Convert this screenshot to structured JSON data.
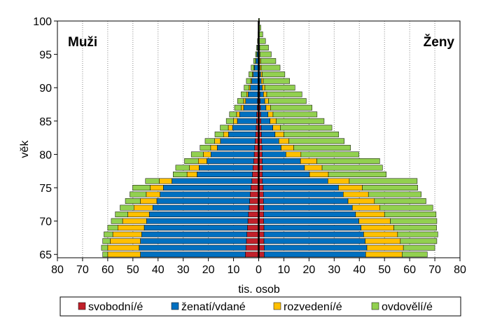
{
  "chart_data": {
    "type": "bar",
    "orientation": "horizontal",
    "title": "",
    "xlabel": "tis. osob",
    "ylabel": "věk",
    "panel_labels": {
      "left": "Muži",
      "right": "Ženy"
    },
    "xlim": [
      -80,
      80
    ],
    "ylim": [
      64.5,
      100
    ],
    "x_ticks": [
      -80,
      -70,
      -60,
      -50,
      -40,
      -30,
      -20,
      -10,
      0,
      10,
      20,
      30,
      40,
      50,
      60,
      70,
      80
    ],
    "x_tick_labels": [
      "80",
      "70",
      "60",
      "50",
      "40",
      "30",
      "20",
      "10",
      "0",
      "10",
      "20",
      "30",
      "40",
      "50",
      "60",
      "70",
      "80"
    ],
    "y_ticks": [
      65,
      70,
      75,
      80,
      85,
      90,
      95,
      100
    ],
    "y_tick_labels": [
      "65",
      "70",
      "75",
      "80",
      "85",
      "90",
      "95",
      "100"
    ],
    "grid": {
      "vertical": true,
      "style": "dotted"
    },
    "stacked": true,
    "legend_position": "bottom",
    "categories": [
      65,
      66,
      67,
      68,
      69,
      70,
      71,
      72,
      73,
      74,
      75,
      76,
      77,
      78,
      79,
      80,
      81,
      82,
      83,
      84,
      85,
      86,
      87,
      88,
      89,
      90,
      91,
      92,
      93,
      94,
      95,
      96,
      97,
      98,
      99,
      100
    ],
    "series": [
      {
        "name": "svobodní/é",
        "color": "#C0202A",
        "men": [
          5.3,
          5.1,
          4.9,
          4.7,
          4.5,
          4.3,
          4.1,
          3.8,
          3.6,
          3.4,
          3.1,
          2.7,
          2.5,
          2.3,
          2.0,
          1.8,
          1.6,
          1.4,
          1.2,
          1.0,
          0.9,
          0.8,
          0.6,
          0.5,
          0.4,
          0.3,
          0.3,
          0.2,
          0.2,
          0.1,
          0.1,
          0.1,
          0.05,
          0.05,
          0.02,
          0.01
        ],
        "women": [
          2.2,
          2.2,
          2.1,
          2.1,
          2.1,
          2.0,
          2.0,
          2.0,
          1.9,
          1.9,
          1.8,
          1.5,
          1.5,
          1.5,
          1.4,
          1.4,
          1.3,
          1.2,
          1.1,
          1.0,
          0.9,
          0.8,
          0.7,
          0.6,
          0.5,
          0.4,
          0.3,
          0.3,
          0.2,
          0.2,
          0.1,
          0.1,
          0.05,
          0.05,
          0.02,
          0.01
        ]
      },
      {
        "name": "ženatí/vdané",
        "color": "#0070C0",
        "men": [
          41.7,
          42.4,
          42.1,
          41.8,
          41.0,
          40.3,
          39.4,
          38.3,
          36.9,
          35.8,
          34.8,
          31.8,
          22.0,
          21.4,
          18.6,
          17.2,
          14.9,
          13.8,
          10.8,
          9.4,
          7.6,
          6.8,
          5.4,
          4.7,
          3.8,
          3.0,
          2.5,
          2.0,
          1.5,
          1.0,
          0.6,
          0.4,
          0.2,
          0.1,
          0.05,
          0.02
        ],
        "women": [
          40.3,
          40.8,
          40.2,
          39.6,
          38.6,
          37.8,
          36.5,
          35.2,
          33.6,
          31.7,
          29.9,
          26.0,
          18.7,
          16.7,
          15.2,
          9.4,
          7.6,
          6.8,
          5.4,
          4.6,
          3.6,
          2.9,
          2.2,
          1.8,
          1.4,
          1.0,
          0.7,
          0.5,
          0.3,
          0.2,
          0.1,
          0.1,
          0.05,
          0.02,
          0.01,
          0.01
        ]
      },
      {
        "name": "rozvedení/é",
        "color": "#FFC000",
        "men": [
          13.0,
          12.5,
          12.0,
          11.5,
          10.5,
          9.5,
          8.5,
          7.5,
          6.5,
          5.5,
          5.2,
          5.0,
          4.0,
          3.8,
          3.4,
          3.0,
          2.6,
          2.3,
          2.0,
          1.7,
          1.5,
          1.2,
          1.0,
          0.8,
          0.6,
          0.5,
          0.4,
          0.3,
          0.2,
          0.1,
          0.05,
          0.03,
          0.02,
          0.01,
          0.01,
          0.0
        ],
        "women": [
          14.5,
          14.5,
          14.0,
          13.5,
          13.0,
          12.5,
          11.5,
          11.0,
          10.5,
          10.0,
          9.5,
          8.5,
          7.5,
          7.0,
          6.5,
          6.0,
          5.0,
          4.0,
          3.5,
          3.0,
          2.5,
          2.0,
          1.8,
          1.5,
          1.3,
          1.0,
          0.8,
          0.6,
          0.5,
          0.4,
          0.3,
          0.2,
          0.1,
          0.05,
          0.02,
          0.01
        ]
      },
      {
        "name": "ovdovělí/é",
        "color": "#92D050",
        "men": [
          2.0,
          2.5,
          3.0,
          3.5,
          4.0,
          4.5,
          5.0,
          5.5,
          6.0,
          6.5,
          7.0,
          5.5,
          5.5,
          5.5,
          5.5,
          4.8,
          4.2,
          3.8,
          3.4,
          3.2,
          2.9,
          2.8,
          2.6,
          2.4,
          2.2,
          2.0,
          1.7,
          1.4,
          1.1,
          0.8,
          0.5,
          0.3,
          0.2,
          0.1,
          0.05,
          0.02
        ],
        "women": [
          10.0,
          12.5,
          14.5,
          16.0,
          17.0,
          18.5,
          20.5,
          21.0,
          20.5,
          21.0,
          22.0,
          27.0,
          23.0,
          24.0,
          25.0,
          23.0,
          22.6,
          22.0,
          21.8,
          20.5,
          19.0,
          17.5,
          16.5,
          15.0,
          14.0,
          12.0,
          10.5,
          9.0,
          7.5,
          6.0,
          4.5,
          3.5,
          2.5,
          1.5,
          0.8,
          0.3
        ]
      }
    ]
  }
}
